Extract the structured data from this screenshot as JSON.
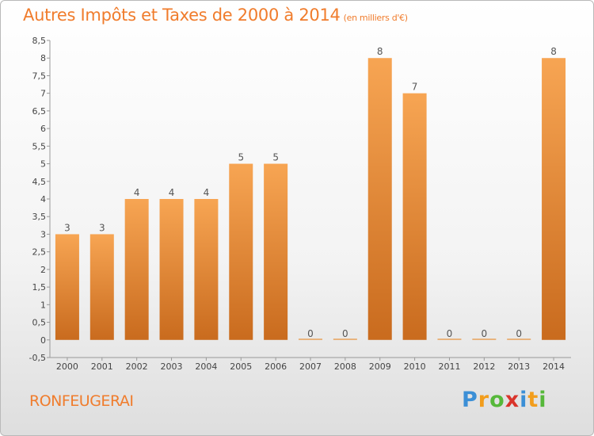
{
  "title": "Autres Impôts et Taxes de 2000 à 2014",
  "unit": "(en milliers d'€)",
  "city": "RONFEUGERAI",
  "logo": {
    "text": "Proxiti",
    "letters": [
      "P",
      "r",
      "o",
      "x",
      "i",
      "t",
      "i"
    ],
    "colors": [
      "#3b8fd6",
      "#f29d1c",
      "#56b83a",
      "#d9342b",
      "#3b8fd6",
      "#f29d1c",
      "#56b83a"
    ]
  },
  "colors": {
    "bar_top": "#f7a553",
    "bar_bottom": "#c96b1e",
    "accent": "#f07c2c"
  },
  "chart_data": {
    "type": "bar",
    "title": "Autres Impôts et Taxes de 2000 à 2014",
    "categories": [
      "2000",
      "2001",
      "2002",
      "2003",
      "2004",
      "2005",
      "2006",
      "2007",
      "2008",
      "2009",
      "2010",
      "2011",
      "2012",
      "2013",
      "2014"
    ],
    "values": [
      3,
      3,
      4,
      4,
      4,
      5,
      5,
      0,
      0,
      8,
      7,
      0,
      0,
      0,
      8
    ],
    "value_labels": [
      "3",
      "3",
      "4",
      "4",
      "4",
      "5",
      "5",
      "0",
      "0",
      "8",
      "7",
      "0",
      "0",
      "0",
      "8"
    ],
    "ylim": [
      -0.5,
      8.5
    ],
    "yticks": [
      -0.5,
      0,
      0.5,
      1,
      1.5,
      2,
      2.5,
      3,
      3.5,
      4,
      4.5,
      5,
      5.5,
      6,
      6.5,
      7,
      7.5,
      8,
      8.5
    ],
    "ytick_labels": [
      "-0,5",
      "0",
      "0,5",
      "1",
      "1,5",
      "2",
      "2,5",
      "3",
      "3,5",
      "4",
      "4,5",
      "5",
      "5,5",
      "6",
      "6,5",
      "7",
      "7,5",
      "8",
      "8,5"
    ],
    "grid": false
  }
}
